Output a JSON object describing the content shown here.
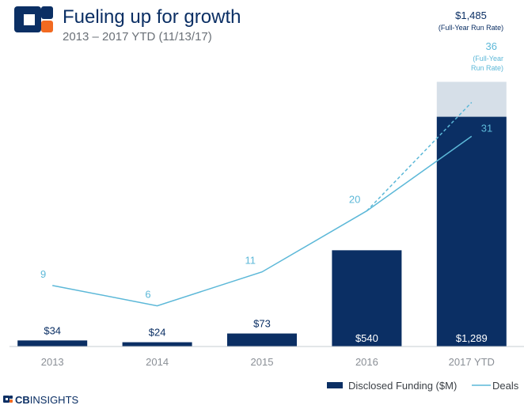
{
  "header": {
    "title": "Fueling up for growth",
    "subtitle": "2013 – 2017 YTD (11/13/17)"
  },
  "colors": {
    "brand_dark": "#0b2f64",
    "brand_orange": "#f26a21",
    "bar_fill": "#0b2f64",
    "run_rate_fill": "#d6dfe8",
    "line_color": "#5cb8d8"
  },
  "chart_data": {
    "type": "bar",
    "categories": [
      "2013",
      "2014",
      "2015",
      "2016",
      "2017 YTD"
    ],
    "series": [
      {
        "name": "Disclosed Funding ($M)",
        "type": "bar",
        "values": [
          34,
          24,
          73,
          540,
          1289
        ],
        "labels": [
          "$34",
          "$24",
          "$73",
          "$540",
          "$1,289"
        ]
      },
      {
        "name": "Deals",
        "type": "line",
        "values": [
          9,
          6,
          11,
          20,
          31
        ],
        "labels": [
          "9",
          "6",
          "11",
          "20",
          "31"
        ]
      }
    ],
    "run_rate": {
      "funding_value": 1485,
      "funding_label": "$1,485",
      "funding_note": "(Full-Year Run Rate)",
      "deals_value": 36,
      "deals_label": "36",
      "deals_note_line1": "(Full-Year",
      "deals_note_line2": "Run Rate)"
    },
    "title": "Fueling up for growth",
    "xlabel": "",
    "ylabel": "",
    "ylim_funding": [
      0,
      1700
    ],
    "ylim_deals": [
      0,
      42
    ],
    "legend": "bottom-right"
  },
  "legend": {
    "funding_label": "Disclosed Funding ($M)",
    "deals_label": "Deals"
  },
  "footer": {
    "brand_prefix": "CB",
    "brand_name": "INSIGHTS"
  }
}
